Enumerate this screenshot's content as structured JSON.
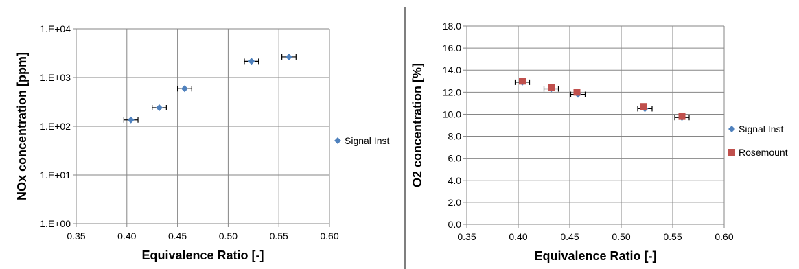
{
  "chart_data": [
    {
      "type": "scatter",
      "xlabel": "Equivalence Ratio [-]",
      "ylabel": "NOx concentration [ppm]",
      "xlim": [
        0.35,
        0.6
      ],
      "xticks": [
        "0.35",
        "0.40",
        "0.45",
        "0.50",
        "0.55",
        "0.60"
      ],
      "ylim": [
        1,
        10000
      ],
      "yscale": "log",
      "yticks": [
        "1.E+00",
        "1.E+01",
        "1.E+02",
        "1.E+03",
        "1.E+04"
      ],
      "grid": true,
      "legend_position": "right",
      "series": [
        {
          "name": "Signal Inst",
          "color": "#4f81bd",
          "marker": "diamond",
          "x": [
            0.404,
            0.432,
            0.457,
            0.523,
            0.56
          ],
          "y": [
            135,
            240,
            590,
            2150,
            2650
          ],
          "x_error": 0.007
        }
      ]
    },
    {
      "type": "scatter",
      "xlabel": "Equivalence Ratio [-]",
      "ylabel": "O2 concentration [%]",
      "xlim": [
        0.35,
        0.6
      ],
      "xticks": [
        "0.35",
        "0.40",
        "0.45",
        "0.50",
        "0.55",
        "0.60"
      ],
      "ylim": [
        0,
        18
      ],
      "yticks": [
        "0.0",
        "2.0",
        "4.0",
        "6.0",
        "8.0",
        "10.0",
        "12.0",
        "14.0",
        "16.0",
        "18.0"
      ],
      "grid": true,
      "legend_position": "right",
      "series": [
        {
          "name": "Signal Inst",
          "color": "#4f81bd",
          "marker": "diamond",
          "x": [
            0.404,
            0.432,
            0.458,
            0.523,
            0.559
          ],
          "y": [
            12.9,
            12.3,
            11.8,
            10.5,
            9.7
          ],
          "x_error": 0.007
        },
        {
          "name": "Rosemount",
          "color": "#c0504d",
          "marker": "square",
          "x": [
            0.404,
            0.432,
            0.457,
            0.522,
            0.559
          ],
          "y": [
            13.0,
            12.4,
            12.0,
            10.7,
            9.8
          ]
        }
      ]
    }
  ]
}
